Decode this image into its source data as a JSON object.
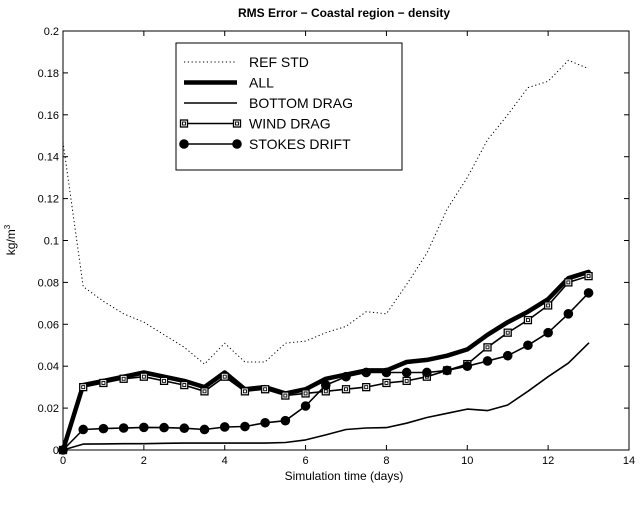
{
  "chart_data": {
    "type": "line",
    "title": "RMS Error − Coastal region − density",
    "xlabel": "Simulation time (days)",
    "ylabel": "kg/m",
    "ylabel_sup": "3",
    "xlim": [
      0,
      14
    ],
    "ylim": [
      0,
      0.2
    ],
    "xticks": [
      0,
      2,
      4,
      6,
      8,
      10,
      12,
      14
    ],
    "xtick_labels": [
      "0",
      "2",
      "4",
      "6",
      "8",
      "10",
      "12",
      "14"
    ],
    "yticks": [
      0,
      0.02,
      0.04,
      0.06,
      0.08,
      0.1,
      0.12,
      0.14,
      0.16,
      0.18,
      0.2
    ],
    "ytick_labels": [
      "0",
      "0.02",
      "0.04",
      "0.06",
      "0.08",
      "0.1",
      "0.12",
      "0.14",
      "0.16",
      "0.18",
      "0.2"
    ],
    "grid": false,
    "legend_position": "top-center",
    "x": [
      0,
      0.5,
      1,
      1.5,
      2,
      2.5,
      3,
      3.5,
      4,
      4.5,
      5,
      5.5,
      6,
      6.5,
      7,
      7.5,
      8,
      8.5,
      9,
      9.5,
      10,
      10.5,
      11,
      11.5,
      12,
      12.5,
      13
    ],
    "series": [
      {
        "name": "REF STD",
        "style": "dotted",
        "values": [
          0.147,
          0.078,
          0.071,
          0.065,
          0.061,
          0.055,
          0.049,
          0.041,
          0.051,
          0.042,
          0.042,
          0.051,
          0.052,
          0.056,
          0.059,
          0.066,
          0.065,
          0.079,
          0.094,
          0.115,
          0.13,
          0.148,
          0.16,
          0.173,
          0.176,
          0.186,
          0.182
        ]
      },
      {
        "name": "ALL",
        "style": "thick",
        "values": [
          0,
          0.031,
          0.033,
          0.035,
          0.037,
          0.035,
          0.033,
          0.03,
          0.037,
          0.029,
          0.03,
          0.027,
          0.029,
          0.034,
          0.036,
          0.038,
          0.038,
          0.042,
          0.043,
          0.045,
          0.048,
          0.055,
          0.061,
          0.066,
          0.072,
          0.082,
          0.085
        ]
      },
      {
        "name": "BOTTOM DRAG",
        "style": "thin",
        "values": [
          0,
          0.0028,
          0.0029,
          0.003,
          0.003,
          0.0032,
          0.0033,
          0.0033,
          0.0033,
          0.0033,
          0.0033,
          0.0036,
          0.0048,
          0.0072,
          0.0098,
          0.0105,
          0.0107,
          0.0128,
          0.0155,
          0.0175,
          0.0195,
          0.0188,
          0.0215,
          0.028,
          0.035,
          0.0415,
          0.051
        ]
      },
      {
        "name": "WIND DRAG",
        "style": "square",
        "values": [
          0,
          0.03,
          0.032,
          0.034,
          0.035,
          0.033,
          0.031,
          0.028,
          0.035,
          0.028,
          0.029,
          0.026,
          0.027,
          0.028,
          0.029,
          0.03,
          0.032,
          0.033,
          0.035,
          0.038,
          0.041,
          0.049,
          0.056,
          0.062,
          0.069,
          0.08,
          0.083
        ]
      },
      {
        "name": "STOKES DRIFT",
        "style": "circle",
        "values": [
          0,
          0.0098,
          0.0102,
          0.0105,
          0.0108,
          0.0107,
          0.0104,
          0.0098,
          0.011,
          0.0112,
          0.013,
          0.014,
          0.021,
          0.031,
          0.035,
          0.037,
          0.037,
          0.037,
          0.037,
          0.038,
          0.04,
          0.0425,
          0.045,
          0.05,
          0.056,
          0.065,
          0.075
        ]
      }
    ]
  }
}
